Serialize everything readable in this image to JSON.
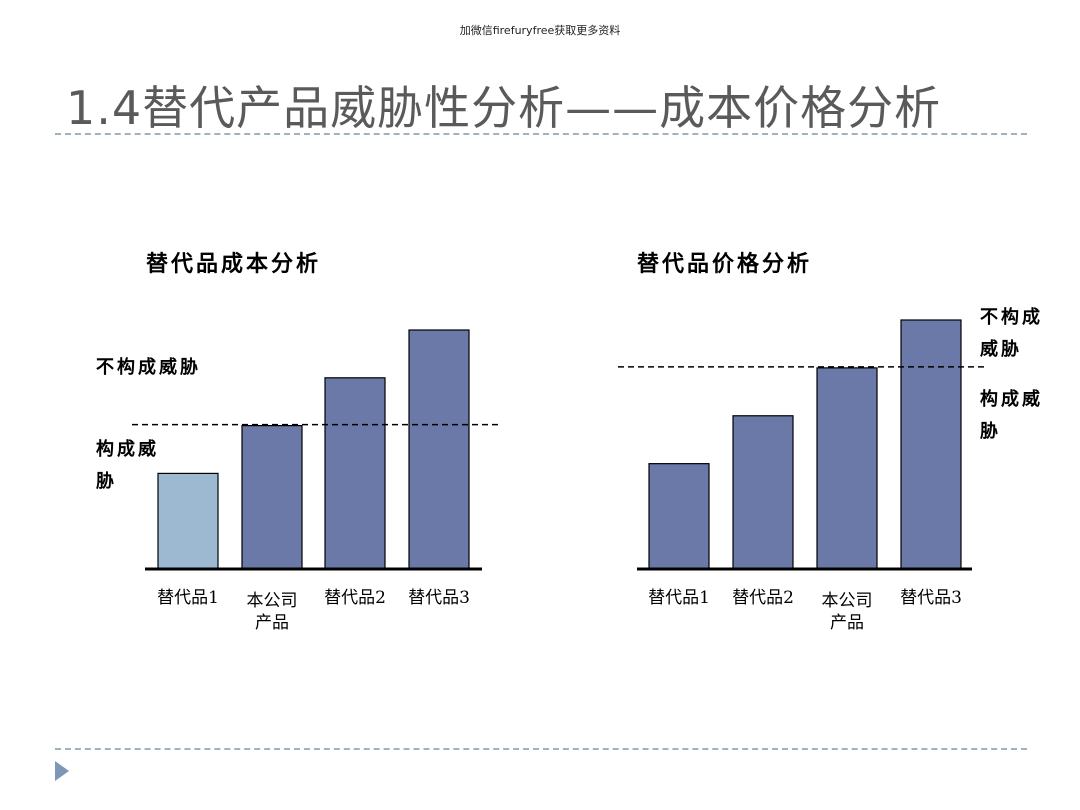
{
  "watermark": "加微信firefuryfree获取更多资料",
  "slide": {
    "title": "1.4替代产品威胁性分析——成本价格分析"
  },
  "chart_data": [
    {
      "type": "bar",
      "title": "替代品成本分析",
      "categories": [
        "替代品1",
        "本公司产品",
        "替代品2",
        "替代品3"
      ],
      "category_lines": [
        [
          "替代品1"
        ],
        [
          "本公司",
          "产品"
        ],
        [
          "替代品2"
        ],
        [
          "替代品3"
        ]
      ],
      "values": [
        2,
        3,
        4,
        5
      ],
      "threshold": 3,
      "ylim": [
        0,
        5
      ],
      "zone_labels": {
        "above": "不构成威胁",
        "below": [
          "构成威",
          "胁"
        ]
      },
      "colors": {
        "highlight": "#9db9d1",
        "bar": "#6b79a8"
      },
      "highlight_index": 0
    },
    {
      "type": "bar",
      "title": "替代品价格分析",
      "categories": [
        "替代品1",
        "替代品2",
        "本公司产品",
        "替代品3"
      ],
      "category_lines": [
        [
          "替代品1"
        ],
        [
          "替代品2"
        ],
        [
          "本公司",
          "产品"
        ],
        [
          "替代品3"
        ]
      ],
      "values": [
        2.2,
        3.2,
        4.2,
        5.2
      ],
      "threshold": 4.2,
      "ylim": [
        0,
        5.2
      ],
      "zone_labels": {
        "above": [
          "不构成",
          "威胁"
        ],
        "below": [
          "构成威",
          "胁"
        ]
      },
      "colors": {
        "bar": "#6b79a8"
      },
      "highlight_index": -1
    }
  ]
}
